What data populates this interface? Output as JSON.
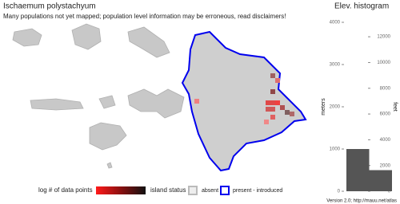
{
  "header": {
    "title": "Ischaemum polystachyum",
    "subtitle": "Many populations not yet mapped; population level information may be erroneous, read disclaimers!"
  },
  "legend": {
    "points_title": "log # of data points",
    "status_title": "island status",
    "absent": "absent",
    "present": "present - introduced"
  },
  "footer": "Version 2.0; http://mauu.net/atlas",
  "chart_data": {
    "type": "histogram",
    "title": "Elev. histogram",
    "ylabel": "meters",
    "y2label": "feet",
    "bins": [
      0,
      500,
      1000
    ],
    "counts": [
      2,
      1
    ],
    "color": "#555555",
    "ylim": [
      0,
      4000
    ],
    "yticks": [
      0,
      1000,
      2000,
      3000,
      4000
    ],
    "y2lim": [
      0,
      13123
    ],
    "y2ticks": [
      0,
      2000,
      4000,
      6000,
      8000,
      10000,
      12000
    ]
  }
}
